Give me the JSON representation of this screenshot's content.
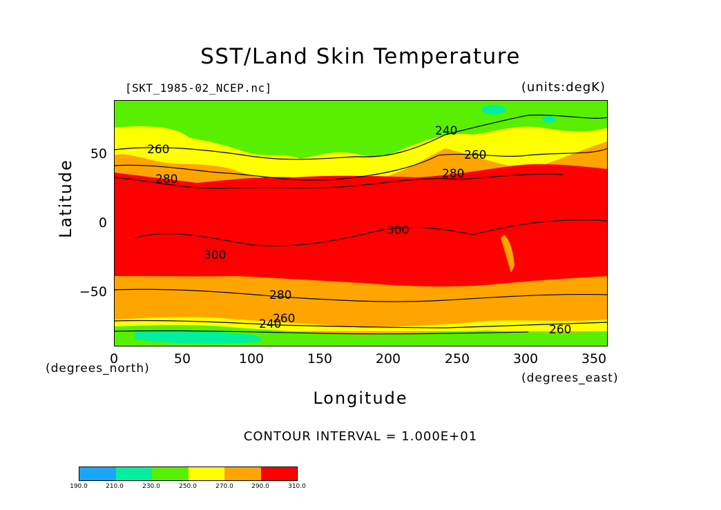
{
  "title": "SST/Land Skin Temperature",
  "file_label": "[SKT_1985-02_NCEP.nc]",
  "units_label": "(units:degK)",
  "y_axis": {
    "label": "Latitude",
    "ticks": [
      "50",
      "0",
      "−50"
    ],
    "unit": "(degrees_north)"
  },
  "x_axis": {
    "label": "Longitude",
    "ticks": [
      "0",
      "50",
      "100",
      "150",
      "200",
      "250",
      "300",
      "350"
    ],
    "unit": "(degrees_east)"
  },
  "contour_interval": "CONTOUR INTERVAL = 1.000E+01",
  "contour_labels": [
    "240",
    "260",
    "260",
    "280",
    "280",
    "300",
    "300",
    "280",
    "260",
    "240",
    "260"
  ],
  "colorbar": {
    "colors": [
      "#1aa6ff",
      "#00f0a0",
      "#58f000",
      "#ffff00",
      "#ffa500",
      "#ff0000"
    ],
    "labels": [
      "190.0",
      "210.0",
      "230.0",
      "250.0",
      "270.0",
      "290.0",
      "310.0"
    ]
  }
}
